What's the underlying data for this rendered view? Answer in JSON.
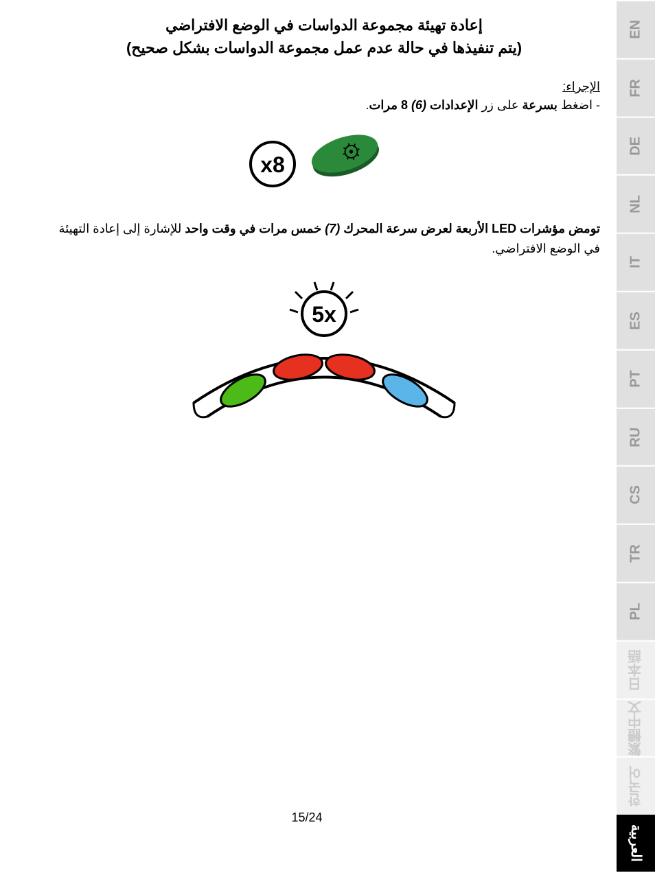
{
  "languages": [
    "EN",
    "FR",
    "DE",
    "NL",
    "IT",
    "ES",
    "PT",
    "RU",
    "CS",
    "TR",
    "PL",
    "日本語",
    "繁體中文",
    "한국어",
    "العربية"
  ],
  "active_lang_index": 14,
  "light_lang_indices": [
    11,
    12,
    13
  ],
  "title_line1": "إعادة تهيئة مجموعة الدواسات في الوضع الافتراضي",
  "title_line2": "(يتم تنفيذها في حالة عدم عمل مجموعة الدواسات بشكل صحيح)",
  "procedure_label": "الإجراء:",
  "proc_prefix": "- اضغط ",
  "proc_quickly": "بسرعة",
  "proc_on_button": " على زر ",
  "proc_settings": "الإعدادات ",
  "proc_ref6": "(6)",
  "proc_space": " ",
  "proc_8times": "8 مرات",
  "proc_period": ".",
  "desc_prefix": "تومض مؤشرات LED الأربعة لعرض سرعة المحرك ",
  "desc_ref7": "(7)",
  "desc_5times": " خمس مرات في وقت واحد",
  "desc_suffix": " للإشارة إلى إعادة التهيئة في الوضع الافتراضي.",
  "page_number": "15/24",
  "x8_label": "x8",
  "x5_label": "5x",
  "colors": {
    "button_green": "#2a8a3a",
    "button_darkgreen": "#1a5a28",
    "pill_green": "#4cbb17",
    "pill_red": "#e63020",
    "pill_blue": "#5ab5e8",
    "arc_fill": "#ffffff",
    "arc_stroke": "#000000"
  }
}
